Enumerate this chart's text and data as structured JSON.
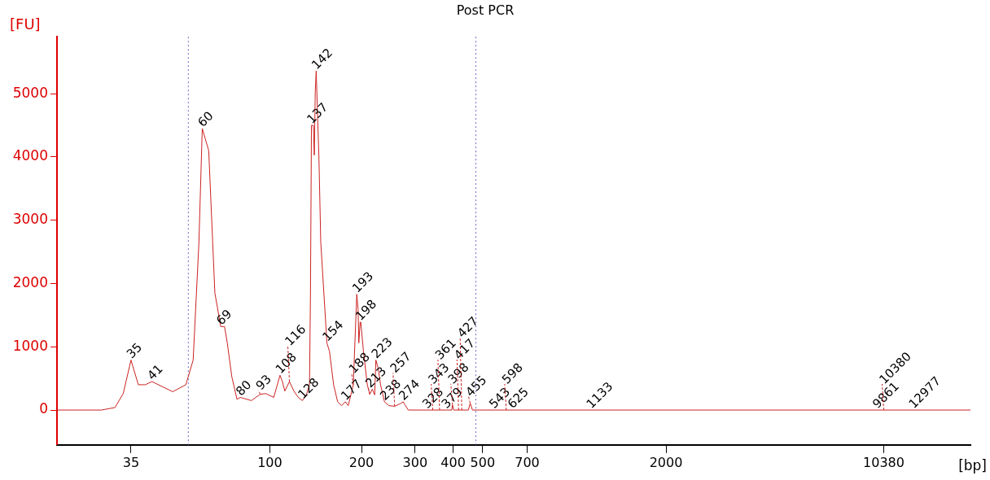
{
  "chart_data": {
    "type": "line",
    "title": "Post PCR",
    "xlabel": "[bp]",
    "ylabel": "[FU]",
    "log": "x",
    "xlim": [
      20,
      20000
    ],
    "ylim": [
      -550,
      5900
    ],
    "xticks": [
      35,
      100,
      200,
      300,
      400,
      500,
      700,
      2000,
      10380
    ],
    "yticks": [
      0,
      1000,
      2000,
      3000,
      4000,
      5000
    ],
    "grid": false,
    "legend": false,
    "marker": "none",
    "line_style": "solid",
    "series": [
      {
        "color": "#cc2222",
        "x": [
          20,
          28,
          31,
          33,
          35,
          37,
          39,
          41,
          48,
          53,
          56,
          58.5,
          60,
          63,
          66,
          69,
          71,
          72.5,
          75,
          78,
          80,
          87,
          93,
          97,
          103,
          108,
          110,
          112,
          116,
          120,
          124,
          128,
          132,
          135,
          136,
          137,
          139,
          140,
          141,
          142,
          145,
          147,
          154,
          157,
          162,
          167,
          172,
          177,
          181,
          188,
          193,
          195,
          196,
          198,
          199,
          203,
          209,
          213,
          217,
          221,
          223,
          227,
          231,
          238,
          246,
          257,
          268,
          274,
          285,
          396,
          398,
          402,
          449,
          455,
          463,
          20000
        ],
        "values": [
          0,
          0,
          40,
          260,
          790,
          400,
          400,
          450,
          290,
          400,
          790,
          2650,
          4450,
          4100,
          1850,
          1320,
          1320,
          1060,
          530,
          170,
          200,
          150,
          250,
          260,
          200,
          550,
          450,
          300,
          450,
          300,
          200,
          150,
          250,
          400,
          1850,
          4500,
          4500,
          4030,
          5030,
          5360,
          3970,
          2650,
          1060,
          930,
          400,
          130,
          70,
          130,
          70,
          400,
          1830,
          1590,
          1060,
          1390,
          1390,
          930,
          400,
          250,
          330,
          240,
          790,
          660,
          400,
          130,
          70,
          60,
          100,
          130,
          0,
          0,
          80,
          0,
          0,
          110,
          0,
          0
        ]
      }
    ],
    "ref_lines": [
      {
        "axis": "x",
        "value": 54,
        "color": "#6666cc",
        "line_style": "dotted"
      },
      {
        "axis": "x",
        "value": 475,
        "color": "#6666cc",
        "line_style": "dotted"
      }
    ],
    "annotations": [
      {
        "text": "35",
        "x": 35,
        "y": 790
      },
      {
        "text": "41",
        "x": 41,
        "y": 450
      },
      {
        "text": "60",
        "x": 60,
        "y": 4450
      },
      {
        "text": "69",
        "x": 69,
        "y": 1320
      },
      {
        "text": "80",
        "x": 80,
        "y": 200
      },
      {
        "text": "93",
        "x": 93,
        "y": 250
      },
      {
        "text": "108",
        "x": 108,
        "y": 550
      },
      {
        "text": "116",
        "x": 116,
        "y": 450
      },
      {
        "text": "128",
        "x": 128,
        "y": 150
      },
      {
        "text": "137",
        "x": 137,
        "y": 4500
      },
      {
        "text": "142",
        "x": 142,
        "y": 5360
      },
      {
        "text": "154",
        "x": 154,
        "y": 1060
      },
      {
        "text": "177",
        "x": 177,
        "y": 130
      },
      {
        "text": "188",
        "x": 188,
        "y": 400
      },
      {
        "text": "193",
        "x": 193,
        "y": 1830
      },
      {
        "text": "198",
        "x": 198,
        "y": 1390
      },
      {
        "text": "213",
        "x": 213,
        "y": 250
      },
      {
        "text": "223",
        "x": 223,
        "y": 790
      },
      {
        "text": "238",
        "x": 238,
        "y": 130
      },
      {
        "text": "257",
        "x": 257,
        "y": 60
      },
      {
        "text": "274",
        "x": 274,
        "y": 130
      },
      {
        "text": "328",
        "x": 328,
        "y": 0
      },
      {
        "text": "343",
        "x": 343,
        "y": 0
      },
      {
        "text": "361",
        "x": 361,
        "y": 0
      },
      {
        "text": "379",
        "x": 379,
        "y": 0
      },
      {
        "text": "398",
        "x": 398,
        "y": 80
      },
      {
        "text": "417",
        "x": 417,
        "y": 0
      },
      {
        "text": "427",
        "x": 427,
        "y": 0
      },
      {
        "text": "455",
        "x": 455,
        "y": 110
      },
      {
        "text": "543",
        "x": 543,
        "y": 0
      },
      {
        "text": "598",
        "x": 598,
        "y": 0
      },
      {
        "text": "625",
        "x": 625,
        "y": 0
      },
      {
        "text": "1133",
        "x": 1133,
        "y": 0
      },
      {
        "text": "9861",
        "x": 9861,
        "y": 0
      },
      {
        "text": "10380",
        "x": 10380,
        "y": 0
      },
      {
        "text": "12977",
        "x": 12977,
        "y": 0
      }
    ]
  }
}
